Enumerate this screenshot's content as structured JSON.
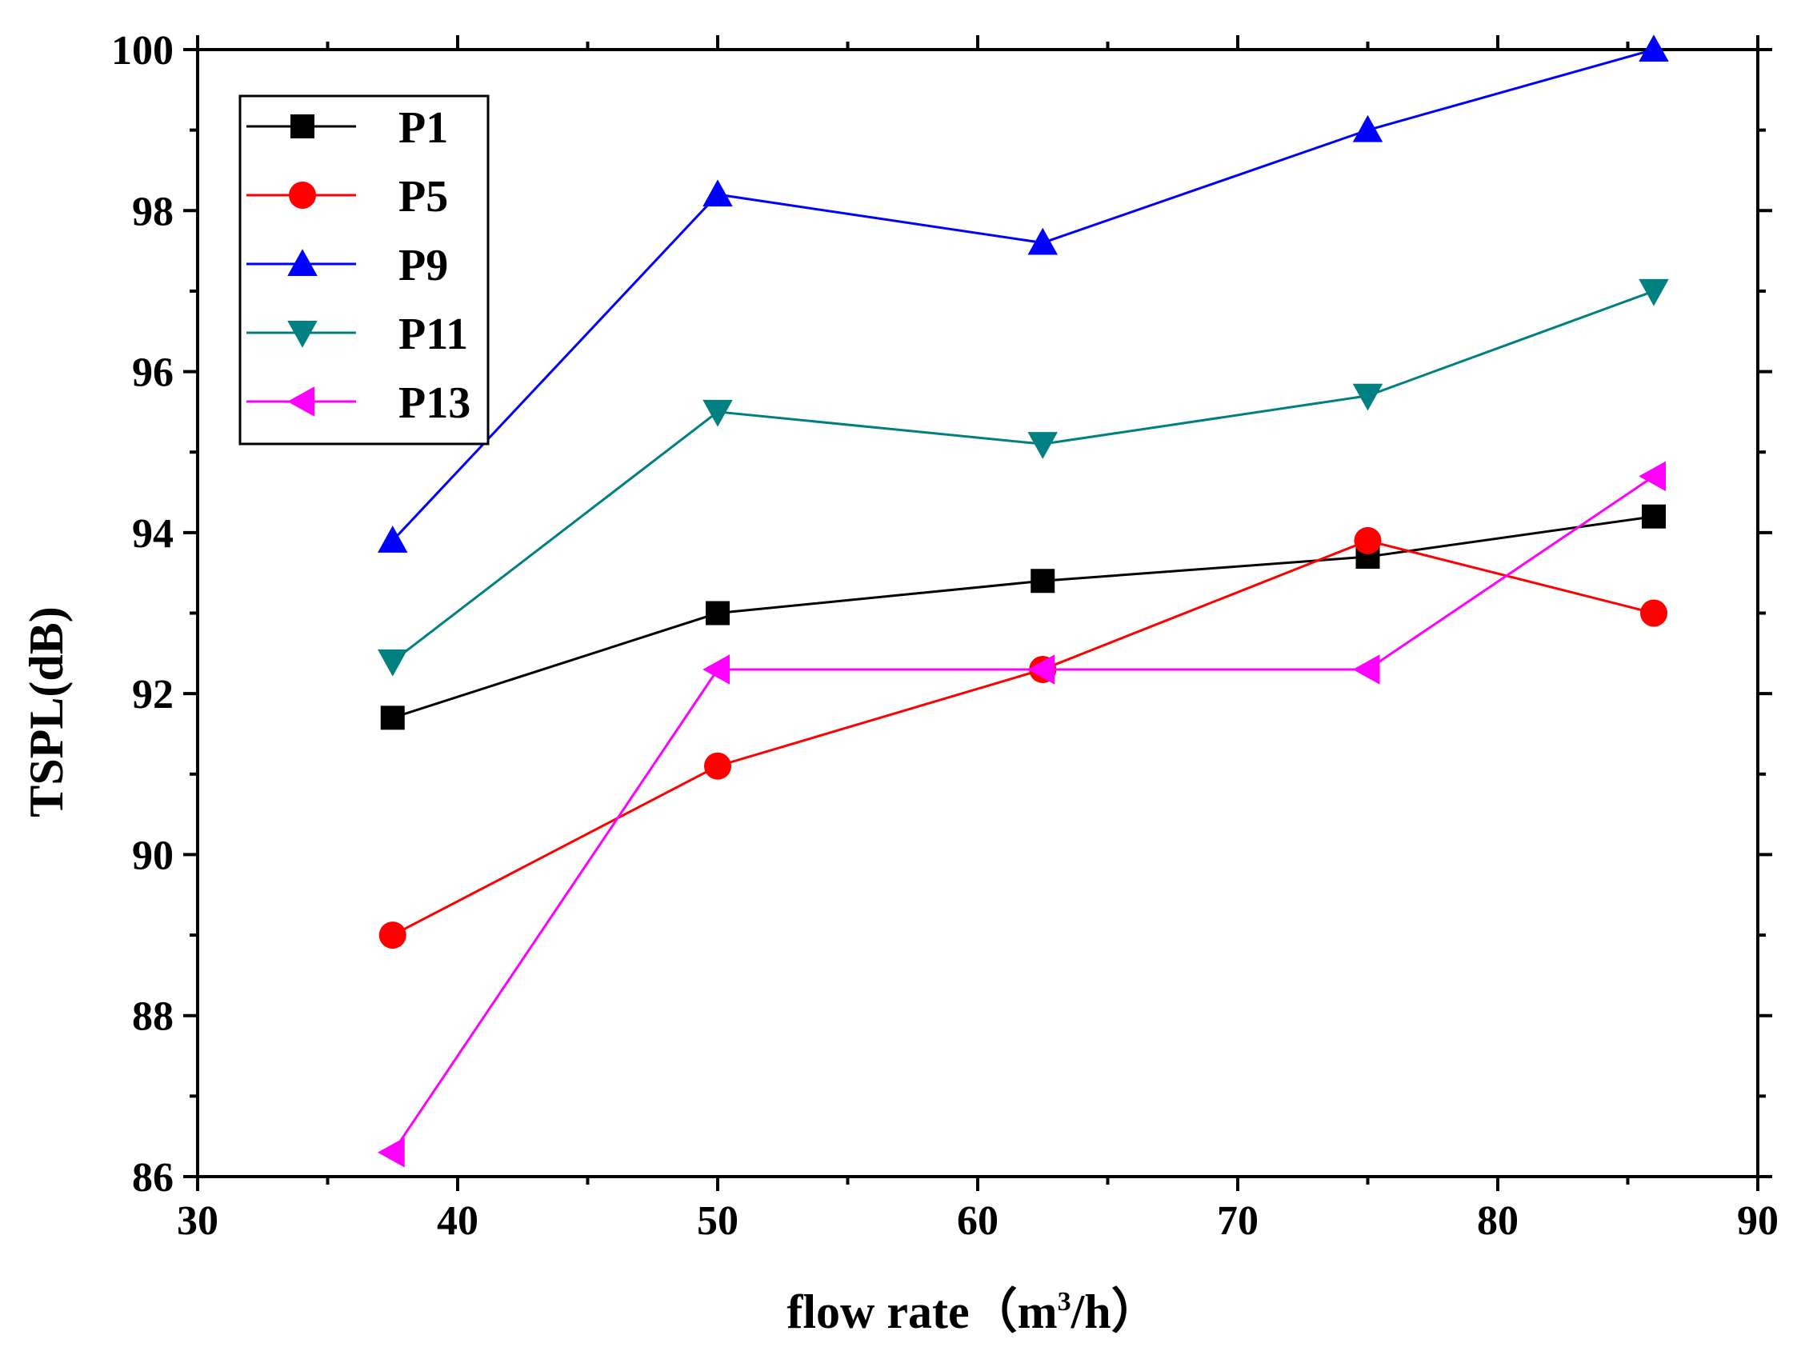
{
  "chart_data": {
    "type": "line",
    "title": "",
    "xlabel": "flow rate（m³/h）",
    "xlabel_parts": {
      "main": "flow rate（m",
      "sup": "3",
      "tail": "/h）"
    },
    "ylabel": "TSPL(dB)",
    "xlim": [
      30,
      90
    ],
    "ylim": [
      86,
      100
    ],
    "xticks": [
      30,
      40,
      50,
      60,
      70,
      80,
      90
    ],
    "yticks": [
      86,
      88,
      90,
      92,
      94,
      96,
      98,
      100
    ],
    "legend_position": "top-left",
    "x": [
      37.5,
      50,
      62.5,
      75,
      86
    ],
    "series": [
      {
        "name": "P1",
        "color": "#000000",
        "marker": "square",
        "values": [
          91.7,
          93.0,
          93.4,
          93.7,
          94.2
        ]
      },
      {
        "name": "P5",
        "color": "#ff0000",
        "marker": "circle",
        "values": [
          89.0,
          91.1,
          92.3,
          93.9,
          93.0
        ]
      },
      {
        "name": "P9",
        "color": "#0000ff",
        "marker": "triangle-up",
        "values": [
          93.9,
          98.2,
          97.6,
          99.0,
          100.0
        ]
      },
      {
        "name": "P11",
        "color": "#008080",
        "marker": "triangle-down",
        "values": [
          92.4,
          95.5,
          95.1,
          95.7,
          97.0
        ]
      },
      {
        "name": "P13",
        "color": "#ff00ff",
        "marker": "triangle-left",
        "values": [
          86.3,
          92.3,
          92.3,
          92.3,
          94.7
        ]
      }
    ]
  }
}
